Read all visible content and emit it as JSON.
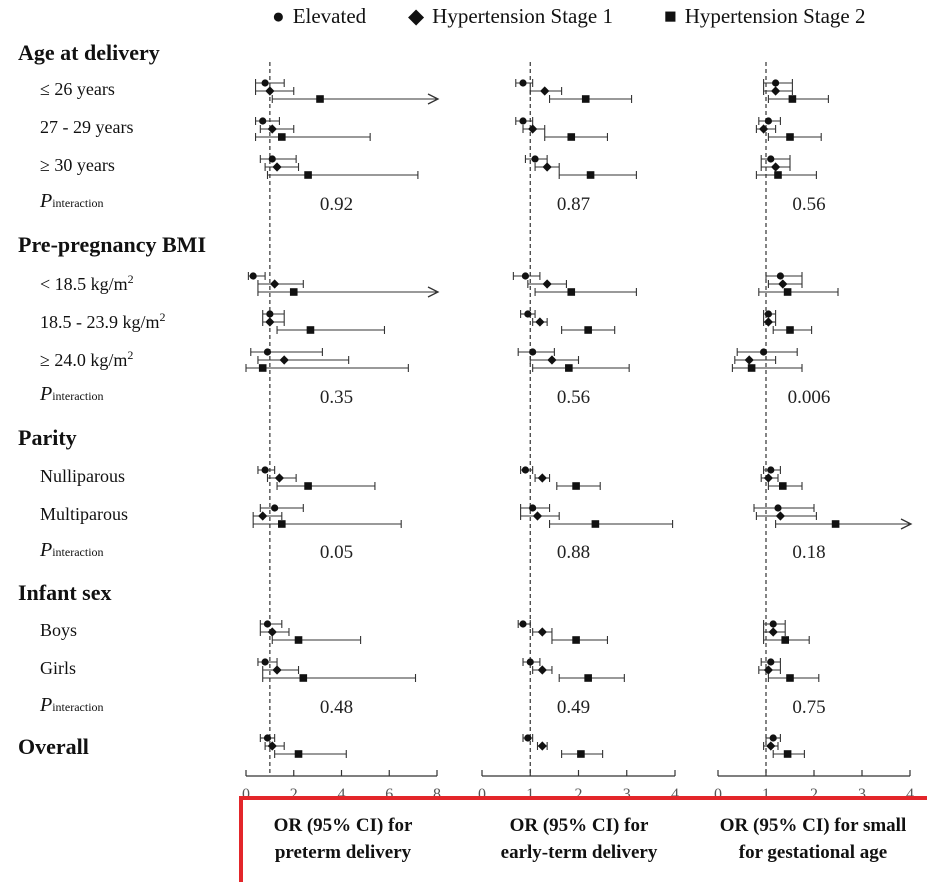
{
  "legend": [
    {
      "symbol": "circle",
      "name": "Elevated"
    },
    {
      "symbol": "diamond",
      "name": "Hypertension Stage 1"
    },
    {
      "symbol": "square",
      "name": "Hypertension Stage 2"
    }
  ],
  "row_labels": {
    "age_title": "Age at delivery",
    "age_1": "≤ 26 years",
    "age_2": "27 - 29 years",
    "age_3": "≥ 30 years",
    "bmi_title": "Pre-pregnancy BMI",
    "bmi_1_pre": "< 18.5 kg/m",
    "bmi_2_pre": "18.5 - 23.9 kg/m",
    "bmi_3_pre": "≥ 24.0 kg/m",
    "bmi_sup": "2",
    "parity_title": "Parity",
    "parity_1": "Nulliparous",
    "parity_2": "Multiparous",
    "sex_title": "Infant sex",
    "sex_1": "Boys",
    "sex_2": "Girls",
    "overall_title": "Overall",
    "p_main": "P",
    "p_sub": "interaction"
  },
  "x_titles": [
    {
      "line1": "OR (95% CI) for",
      "line2": "preterm delivery"
    },
    {
      "line1": "OR (95% CI) for",
      "line2": "early-term delivery"
    },
    {
      "line1": "OR (95% CI) for small",
      "line2": "for gestational age"
    }
  ],
  "chart_data": [
    {
      "type": "scatter",
      "title": "",
      "xlabel": "OR (95% CI) for preterm delivery",
      "xlim": [
        0,
        8
      ],
      "xticks": [
        "0",
        "2",
        "4",
        "6",
        "8"
      ],
      "reference_line": 1,
      "rows": [
        {
          "group": "Age at delivery",
          "subgroup": "≤ 26 years",
          "estimates": [
            [
              0.8,
              0.4,
              1.6
            ],
            [
              1.0,
              0.4,
              2.0
            ],
            [
              3.1,
              1.1,
              8.0,
              "arrow"
            ]
          ]
        },
        {
          "group": "Age at delivery",
          "subgroup": "27 - 29 years",
          "estimates": [
            [
              0.7,
              0.4,
              1.4
            ],
            [
              1.1,
              0.6,
              2.0
            ],
            [
              1.5,
              0.4,
              5.2
            ]
          ]
        },
        {
          "group": "Age at delivery",
          "subgroup": "≥ 30 years",
          "estimates": [
            [
              1.1,
              0.6,
              2.1
            ],
            [
              1.3,
              0.8,
              2.2
            ],
            [
              2.6,
              0.9,
              7.2
            ]
          ]
        },
        {
          "group": "Pre-pregnancy BMI",
          "subgroup": "< 18.5",
          "estimates": [
            [
              0.3,
              0.1,
              0.8
            ],
            [
              1.2,
              0.5,
              2.4
            ],
            [
              2.0,
              0.5,
              8.0,
              "arrow"
            ]
          ]
        },
        {
          "group": "Pre-pregnancy BMI",
          "subgroup": "18.5 - 23.9",
          "estimates": [
            [
              1.0,
              0.7,
              1.6
            ],
            [
              1.0,
              0.7,
              1.6
            ],
            [
              2.7,
              1.3,
              5.8
            ]
          ]
        },
        {
          "group": "Pre-pregnancy BMI",
          "subgroup": "≥ 24.0",
          "estimates": [
            [
              0.9,
              0.2,
              3.2
            ],
            [
              1.6,
              0.5,
              4.3
            ],
            [
              0.7,
              0.0,
              6.8
            ]
          ]
        },
        {
          "group": "Parity",
          "subgroup": "Nulliparous",
          "estimates": [
            [
              0.8,
              0.5,
              1.2
            ],
            [
              1.4,
              0.9,
              2.1
            ],
            [
              2.6,
              1.3,
              5.4
            ]
          ]
        },
        {
          "group": "Parity",
          "subgroup": "Multiparous",
          "estimates": [
            [
              1.2,
              0.6,
              2.4
            ],
            [
              0.7,
              0.3,
              1.5
            ],
            [
              1.5,
              0.3,
              6.5
            ]
          ]
        },
        {
          "group": "Infant sex",
          "subgroup": "Boys",
          "estimates": [
            [
              0.9,
              0.6,
              1.5
            ],
            [
              1.1,
              0.6,
              1.8
            ],
            [
              2.2,
              1.1,
              4.8
            ]
          ]
        },
        {
          "group": "Infant sex",
          "subgroup": "Girls",
          "estimates": [
            [
              0.8,
              0.5,
              1.3
            ],
            [
              1.3,
              0.7,
              2.2
            ],
            [
              2.4,
              0.7,
              7.1
            ]
          ]
        },
        {
          "group": "Overall",
          "subgroup": "Overall",
          "estimates": [
            [
              0.9,
              0.6,
              1.2
            ],
            [
              1.1,
              0.8,
              1.6
            ],
            [
              2.2,
              1.2,
              4.2
            ]
          ]
        }
      ],
      "p_interaction": [
        "0.92",
        "0.35",
        "0.05",
        "0.48"
      ]
    },
    {
      "type": "scatter",
      "title": "",
      "xlabel": "OR (95% CI) for early-term delivery",
      "xlim": [
        0,
        4
      ],
      "xticks": [
        "0",
        "1",
        "2",
        "3",
        "4"
      ],
      "reference_line": 1,
      "rows": [
        {
          "group": "Age at delivery",
          "subgroup": "≤ 26 years",
          "estimates": [
            [
              0.85,
              0.7,
              1.05
            ],
            [
              1.3,
              1.0,
              1.65
            ],
            [
              2.15,
              1.4,
              3.1
            ]
          ]
        },
        {
          "group": "Age at delivery",
          "subgroup": "27 - 29 years",
          "estimates": [
            [
              0.85,
              0.7,
              1.05
            ],
            [
              1.05,
              0.85,
              1.3
            ],
            [
              1.85,
              1.3,
              2.6
            ]
          ]
        },
        {
          "group": "Age at delivery",
          "subgroup": "≥ 30 years",
          "estimates": [
            [
              1.1,
              0.9,
              1.35
            ],
            [
              1.35,
              1.1,
              1.6
            ],
            [
              2.25,
              1.6,
              3.2
            ]
          ]
        },
        {
          "group": "Pre-pregnancy BMI",
          "subgroup": "< 18.5",
          "estimates": [
            [
              0.9,
              0.65,
              1.2
            ],
            [
              1.35,
              0.95,
              1.75
            ],
            [
              1.85,
              1.1,
              3.2
            ]
          ]
        },
        {
          "group": "Pre-pregnancy BMI",
          "subgroup": "18.5 - 23.9",
          "estimates": [
            [
              0.95,
              0.8,
              1.1
            ],
            [
              1.2,
              1.05,
              1.35
            ],
            [
              2.2,
              1.65,
              2.75
            ]
          ]
        },
        {
          "group": "Pre-pregnancy BMI",
          "subgroup": "≥ 24.0",
          "estimates": [
            [
              1.05,
              0.75,
              1.5
            ],
            [
              1.45,
              1.0,
              2.0
            ],
            [
              1.8,
              1.05,
              3.05
            ]
          ]
        },
        {
          "group": "Parity",
          "subgroup": "Nulliparous",
          "estimates": [
            [
              0.9,
              0.8,
              1.05
            ],
            [
              1.25,
              1.1,
              1.4
            ],
            [
              1.95,
              1.55,
              2.45
            ]
          ]
        },
        {
          "group": "Parity",
          "subgroup": "Multiparous",
          "estimates": [
            [
              1.05,
              0.8,
              1.4
            ],
            [
              1.15,
              0.8,
              1.6
            ],
            [
              2.35,
              1.4,
              3.95
            ]
          ]
        },
        {
          "group": "Infant sex",
          "subgroup": "Boys",
          "estimates": [
            [
              0.85,
              0.75,
              1.0
            ],
            [
              1.25,
              1.05,
              1.45
            ],
            [
              1.95,
              1.45,
              2.6
            ]
          ]
        },
        {
          "group": "Infant sex",
          "subgroup": "Girls",
          "estimates": [
            [
              1.0,
              0.85,
              1.2
            ],
            [
              1.25,
              1.05,
              1.45
            ],
            [
              2.2,
              1.6,
              2.95
            ]
          ]
        },
        {
          "group": "Overall",
          "subgroup": "Overall",
          "estimates": [
            [
              0.95,
              0.85,
              1.05
            ],
            [
              1.25,
              1.15,
              1.35
            ],
            [
              2.05,
              1.65,
              2.5
            ]
          ]
        }
      ],
      "p_interaction": [
        "0.87",
        "0.56",
        "0.88",
        "0.49"
      ]
    },
    {
      "type": "scatter",
      "title": "",
      "xlabel": "OR (95% CI) for small for gestational age",
      "xlim": [
        0,
        4
      ],
      "xticks": [
        "0",
        "1",
        "2",
        "3",
        "4"
      ],
      "reference_line": 1,
      "rows": [
        {
          "group": "Age at delivery",
          "subgroup": "≤ 26 years",
          "estimates": [
            [
              1.2,
              0.95,
              1.55
            ],
            [
              1.2,
              0.95,
              1.55
            ],
            [
              1.55,
              1.05,
              2.3
            ]
          ]
        },
        {
          "group": "Age at delivery",
          "subgroup": "27 - 29 years",
          "estimates": [
            [
              1.05,
              0.85,
              1.3
            ],
            [
              0.95,
              0.8,
              1.2
            ],
            [
              1.5,
              1.05,
              2.15
            ]
          ]
        },
        {
          "group": "Age at delivery",
          "subgroup": "≥ 30 years",
          "estimates": [
            [
              1.1,
              0.9,
              1.5
            ],
            [
              1.2,
              0.9,
              1.5
            ],
            [
              1.25,
              0.8,
              2.05
            ]
          ]
        },
        {
          "group": "Pre-pregnancy BMI",
          "subgroup": "< 18.5",
          "estimates": [
            [
              1.3,
              1.0,
              1.75
            ],
            [
              1.35,
              1.05,
              1.75
            ],
            [
              1.45,
              0.85,
              2.5
            ]
          ]
        },
        {
          "group": "Pre-pregnancy BMI",
          "subgroup": "18.5 - 23.9",
          "estimates": [
            [
              1.05,
              0.95,
              1.2
            ],
            [
              1.05,
              0.95,
              1.2
            ],
            [
              1.5,
              1.15,
              1.95
            ]
          ]
        },
        {
          "group": "Pre-pregnancy BMI",
          "subgroup": "≥ 24.0",
          "estimates": [
            [
              0.95,
              0.4,
              1.65
            ],
            [
              0.65,
              0.35,
              1.2
            ],
            [
              0.7,
              0.3,
              1.75
            ]
          ]
        },
        {
          "group": "Parity",
          "subgroup": "Nulliparous",
          "estimates": [
            [
              1.1,
              0.95,
              1.3
            ],
            [
              1.05,
              0.9,
              1.25
            ],
            [
              1.35,
              1.05,
              1.75
            ]
          ]
        },
        {
          "group": "Parity",
          "subgroup": "Multiparous",
          "estimates": [
            [
              1.25,
              0.75,
              2.0
            ],
            [
              1.3,
              0.8,
              2.05
            ],
            [
              2.45,
              1.2,
              4.0,
              "arrow"
            ]
          ]
        },
        {
          "group": "Infant sex",
          "subgroup": "Boys",
          "estimates": [
            [
              1.15,
              0.95,
              1.4
            ],
            [
              1.15,
              0.95,
              1.4
            ],
            [
              1.4,
              0.95,
              1.9
            ]
          ]
        },
        {
          "group": "Infant sex",
          "subgroup": "Girls",
          "estimates": [
            [
              1.1,
              0.9,
              1.3
            ],
            [
              1.05,
              0.85,
              1.3
            ],
            [
              1.5,
              1.05,
              2.1
            ]
          ]
        },
        {
          "group": "Overall",
          "subgroup": "Overall",
          "estimates": [
            [
              1.15,
              1.0,
              1.3
            ],
            [
              1.1,
              0.95,
              1.25
            ],
            [
              1.45,
              1.15,
              1.8
            ]
          ]
        }
      ],
      "p_interaction": [
        "0.56",
        "0.006",
        "0.18",
        "0.75"
      ]
    }
  ]
}
